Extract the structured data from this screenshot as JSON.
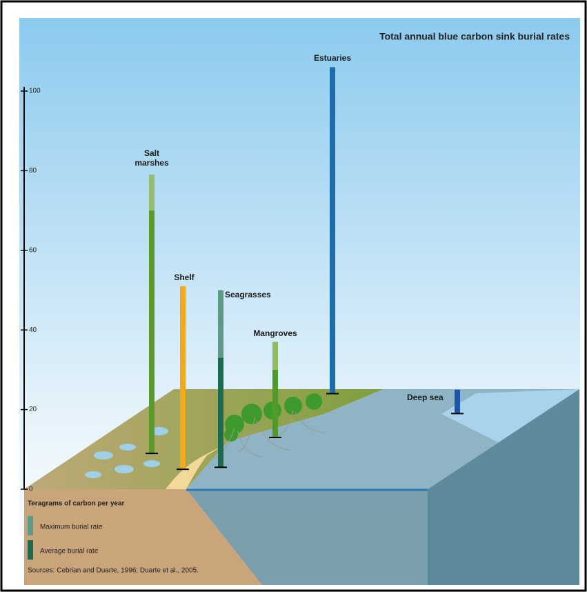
{
  "chart_data": {
    "type": "range-bar",
    "title": "Total annual blue carbon sink burial rates",
    "ylim": [
      0,
      100
    ],
    "yticks": [
      0,
      20,
      40,
      60,
      80,
      100
    ],
    "bars": [
      {
        "name": "Salt marshes",
        "min": 9,
        "avg": 70,
        "max": 79,
        "color": "#93bd6c",
        "avg_color": "#5b9b2b"
      },
      {
        "name": "Shelf",
        "min": 5,
        "avg": null,
        "max": 51,
        "color": "#f2a91c",
        "avg_color": null
      },
      {
        "name": "Seagrasses",
        "min": 5.5,
        "avg": 33,
        "max": 50,
        "color": "#5e9a88",
        "avg_color": "#1d6a50"
      },
      {
        "name": "Mangroves",
        "min": 13,
        "avg": 30,
        "max": 37,
        "color": "#8fba62",
        "avg_color": "#4f9a2a"
      },
      {
        "name": "Estuaries",
        "min": 24,
        "avg": null,
        "max": 106,
        "color": "#1d6cae",
        "avg_color": null
      },
      {
        "name": "Deep sea",
        "min": 19,
        "avg": null,
        "max": 25,
        "color": "#1b56a8",
        "avg_color": null
      }
    ],
    "legend": {
      "title": "Teragrams of carbon per year",
      "items": [
        {
          "name": "Maximum burial rate",
          "color": "#5e9a88"
        },
        {
          "name": "Average burial rate",
          "color": "#1d6a50"
        }
      ]
    },
    "source": "Sources: Cebrian and Duarte, 1996; Duarte et al., 2005."
  }
}
